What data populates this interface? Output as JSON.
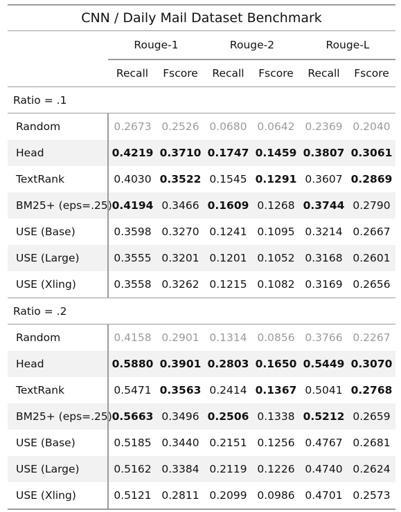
{
  "table": {
    "title": "CNN / Daily Mail Dataset Benchmark",
    "groups": [
      "Rouge-1",
      "Rouge-2",
      "Rouge-L"
    ],
    "metrics": [
      "Recall",
      "Fscore",
      "Recall",
      "Fscore",
      "Recall",
      "Fscore"
    ],
    "sections": [
      {
        "label": "Ratio = .1",
        "rows": [
          {
            "name": "Random",
            "values": [
              "0.2673",
              "0.2526",
              "0.0680",
              "0.0642",
              "0.2369",
              "0.2040"
            ],
            "bold": [
              false,
              false,
              false,
              false,
              false,
              false
            ]
          },
          {
            "name": "Head",
            "values": [
              "0.4219",
              "0.3710",
              "0.1747",
              "0.1459",
              "0.3807",
              "0.3061"
            ],
            "bold": [
              true,
              true,
              true,
              true,
              true,
              true
            ]
          },
          {
            "name": "TextRank",
            "values": [
              "0.4030",
              "0.3522",
              "0.1545",
              "0.1291",
              "0.3607",
              "0.2869"
            ],
            "bold": [
              false,
              true,
              false,
              true,
              false,
              true
            ]
          },
          {
            "name": "BM25+ (eps=.25)",
            "values": [
              "0.4194",
              "0.3466",
              "0.1609",
              "0.1268",
              "0.3744",
              "0.2790"
            ],
            "bold": [
              true,
              false,
              true,
              false,
              true,
              false
            ]
          },
          {
            "name": "USE (Base)",
            "values": [
              "0.3598",
              "0.3270",
              "0.1241",
              "0.1095",
              "0.3214",
              "0.2667"
            ],
            "bold": [
              false,
              false,
              false,
              false,
              false,
              false
            ]
          },
          {
            "name": "USE (Large)",
            "values": [
              "0.3555",
              "0.3201",
              "0.1201",
              "0.1052",
              "0.3168",
              "0.2601"
            ],
            "bold": [
              false,
              false,
              false,
              false,
              false,
              false
            ]
          },
          {
            "name": "USE (Xling)",
            "values": [
              "0.3558",
              "0.3262",
              "0.1215",
              "0.1082",
              "0.3169",
              "0.2656"
            ],
            "bold": [
              false,
              false,
              false,
              false,
              false,
              false
            ]
          }
        ]
      },
      {
        "label": "Ratio = .2",
        "rows": [
          {
            "name": "Random",
            "values": [
              "0.4158",
              "0.2901",
              "0.1314",
              "0.0856",
              "0.3766",
              "0.2267"
            ],
            "bold": [
              false,
              false,
              false,
              false,
              false,
              false
            ]
          },
          {
            "name": "Head",
            "values": [
              "0.5880",
              "0.3901",
              "0.2803",
              "0.1650",
              "0.5449",
              "0.3070"
            ],
            "bold": [
              true,
              true,
              true,
              true,
              true,
              true
            ]
          },
          {
            "name": "TextRank",
            "values": [
              "0.5471",
              "0.3563",
              "0.2414",
              "0.1367",
              "0.5041",
              "0.2768"
            ],
            "bold": [
              false,
              true,
              false,
              true,
              false,
              true
            ]
          },
          {
            "name": "BM25+ (eps=.25)",
            "values": [
              "0.5663",
              "0.3496",
              "0.2506",
              "0.1338",
              "0.5212",
              "0.2659"
            ],
            "bold": [
              true,
              false,
              true,
              false,
              true,
              false
            ]
          },
          {
            "name": "USE (Base)",
            "values": [
              "0.5185",
              "0.3440",
              "0.2151",
              "0.1256",
              "0.4767",
              "0.2681"
            ],
            "bold": [
              false,
              false,
              false,
              false,
              false,
              false
            ]
          },
          {
            "name": "USE (Large)",
            "values": [
              "0.5162",
              "0.3384",
              "0.2119",
              "0.1226",
              "0.4740",
              "0.2624"
            ],
            "bold": [
              false,
              false,
              false,
              false,
              false,
              false
            ]
          },
          {
            "name": "USE (Xling)",
            "values": [
              "0.5121",
              "0.2811",
              "0.2099",
              "0.0986",
              "0.4701",
              "0.2573"
            ],
            "bold": [
              false,
              false,
              false,
              false,
              false,
              false
            ]
          }
        ]
      }
    ]
  }
}
